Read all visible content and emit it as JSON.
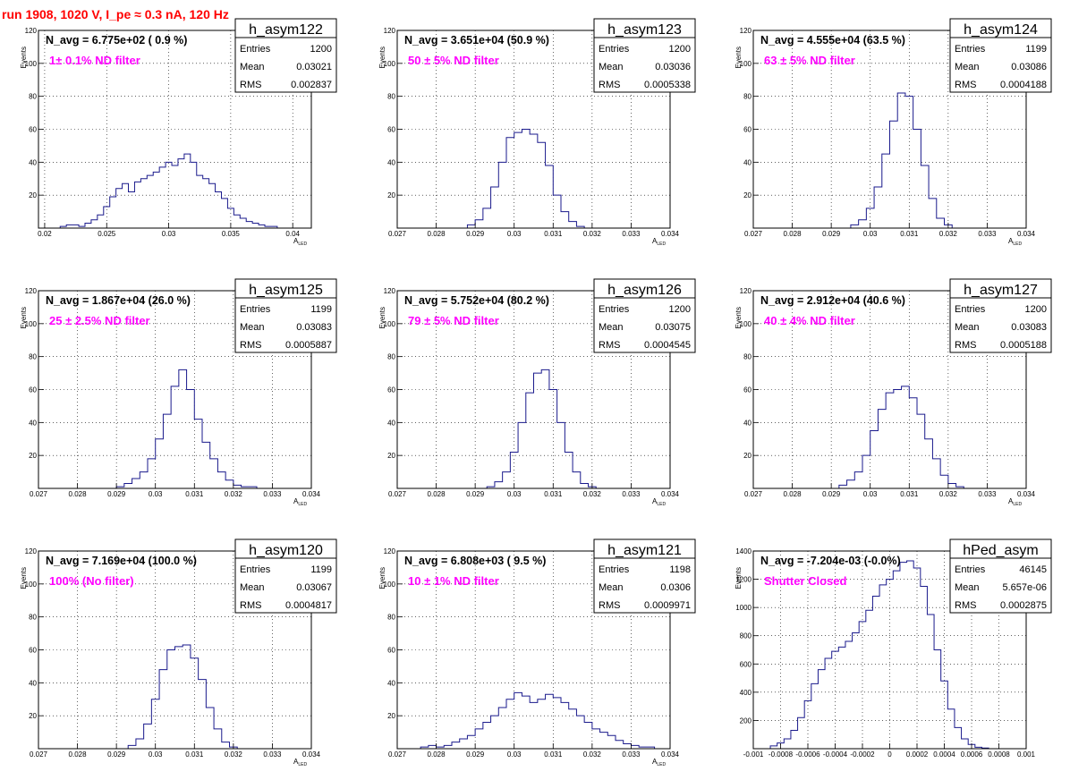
{
  "title": "run 1908,  1020 V, I_pe ≈ 0.3 nA, 120 Hz",
  "chart_data": [
    {
      "type": "histogram",
      "name": "h_asym122",
      "navg": "N_avg = 6.775e+02 ( 0.9 %)",
      "filter": "1± 0.1% ND filter",
      "stats": {
        "Entries": "1200",
        "Mean": "0.03021",
        "RMS": "0.002837"
      },
      "xlabel": "A",
      "xlabel_sub": "LED",
      "ylabel": "Events",
      "xlim": [
        0.0195,
        0.0415
      ],
      "ylim": [
        0,
        120
      ],
      "xticks": [
        "0.02",
        "0.025",
        "0.03",
        "0.035",
        "0.04"
      ],
      "yticks": [
        "20",
        "40",
        "60",
        "80",
        "100",
        "120"
      ],
      "x": [
        0.0215,
        0.022,
        0.0225,
        0.023,
        0.0235,
        0.024,
        0.0245,
        0.025,
        0.0255,
        0.026,
        0.0265,
        0.027,
        0.0275,
        0.028,
        0.0285,
        0.029,
        0.0295,
        0.03,
        0.0305,
        0.031,
        0.0315,
        0.032,
        0.0325,
        0.033,
        0.0335,
        0.034,
        0.0345,
        0.035,
        0.0355,
        0.036,
        0.0365,
        0.037,
        0.0375,
        0.038,
        0.0385
      ],
      "y": [
        1,
        2,
        2,
        1,
        3,
        5,
        8,
        13,
        19,
        24,
        27,
        22,
        28,
        30,
        32,
        34,
        37,
        40,
        38,
        42,
        45,
        40,
        32,
        30,
        27,
        22,
        18,
        12,
        8,
        6,
        4,
        3,
        2,
        1,
        1
      ]
    },
    {
      "type": "histogram",
      "name": "h_asym123",
      "navg": "N_avg = 3.651e+04 (50.9 %)",
      "filter": "50 ± 5% ND filter",
      "stats": {
        "Entries": "1200",
        "Mean": "0.03036",
        "RMS": "0.0005338"
      },
      "xlabel": "A",
      "xlabel_sub": "LED",
      "ylabel": "Events",
      "xlim": [
        0.027,
        0.034
      ],
      "ylim": [
        0,
        120
      ],
      "xticks": [
        "0.027",
        "0.028",
        "0.029",
        "0.03",
        "0.031",
        "0.032",
        "0.033",
        "0.034"
      ],
      "yticks": [
        "20",
        "40",
        "60",
        "80",
        "100",
        "120"
      ],
      "x": [
        0.0289,
        0.0291,
        0.0293,
        0.0295,
        0.0297,
        0.0299,
        0.0301,
        0.0303,
        0.0305,
        0.0307,
        0.0309,
        0.0311,
        0.0313,
        0.0315,
        0.0317
      ],
      "y": [
        2,
        5,
        12,
        25,
        40,
        55,
        58,
        60,
        57,
        52,
        38,
        20,
        10,
        4,
        1
      ]
    },
    {
      "type": "histogram",
      "name": "h_asym124",
      "navg": "N_avg = 4.555e+04 (63.5 %)",
      "filter": "63 ± 5% ND filter",
      "stats": {
        "Entries": "1199",
        "Mean": "0.03086",
        "RMS": "0.0004188"
      },
      "xlabel": "A",
      "xlabel_sub": "LED",
      "ylabel": "Events",
      "xlim": [
        0.027,
        0.034
      ],
      "ylim": [
        0,
        120
      ],
      "xticks": [
        "0.027",
        "0.028",
        "0.029",
        "0.03",
        "0.031",
        "0.032",
        "0.033",
        "0.034"
      ],
      "yticks": [
        "20",
        "40",
        "60",
        "80",
        "100",
        "120"
      ],
      "x": [
        0.0296,
        0.0298,
        0.03,
        0.0302,
        0.0304,
        0.0306,
        0.0308,
        0.031,
        0.0312,
        0.0314,
        0.0316,
        0.0318,
        0.032
      ],
      "y": [
        2,
        5,
        12,
        25,
        45,
        65,
        82,
        80,
        60,
        38,
        18,
        6,
        2
      ]
    },
    {
      "type": "histogram",
      "name": "h_asym125",
      "navg": "N_avg = 1.867e+04 (26.0 %)",
      "filter": "25 ± 2.5% ND filter",
      "stats": {
        "Entries": "1199",
        "Mean": "0.03083",
        "RMS": "0.0005887"
      },
      "xlabel": "A",
      "xlabel_sub": "LED",
      "ylabel": "Events",
      "xlim": [
        0.027,
        0.034
      ],
      "ylim": [
        0,
        120
      ],
      "xticks": [
        "0.027",
        "0.028",
        "0.029",
        "0.03",
        "0.031",
        "0.032",
        "0.033",
        "0.034"
      ],
      "yticks": [
        "20",
        "40",
        "60",
        "80",
        "100",
        "120"
      ],
      "x": [
        0.0291,
        0.0293,
        0.0295,
        0.0297,
        0.0299,
        0.0301,
        0.0303,
        0.0305,
        0.0307,
        0.0309,
        0.0311,
        0.0313,
        0.0315,
        0.0317,
        0.0319,
        0.0321,
        0.0323,
        0.0325
      ],
      "y": [
        1,
        3,
        6,
        10,
        18,
        30,
        45,
        62,
        72,
        60,
        42,
        28,
        18,
        10,
        5,
        2,
        1,
        1
      ]
    },
    {
      "type": "histogram",
      "name": "h_asym126",
      "navg": "N_avg = 5.752e+04 (80.2 %)",
      "filter": "79 ± 5% ND filter",
      "stats": {
        "Entries": "1200",
        "Mean": "0.03075",
        "RMS": "0.0004545"
      },
      "xlabel": "A",
      "xlabel_sub": "LED",
      "ylabel": "Events",
      "xlim": [
        0.027,
        0.034
      ],
      "ylim": [
        0,
        120
      ],
      "xticks": [
        "0.027",
        "0.028",
        "0.029",
        "0.03",
        "0.031",
        "0.032",
        "0.033",
        "0.034"
      ],
      "yticks": [
        "20",
        "40",
        "60",
        "80",
        "100",
        "120"
      ],
      "x": [
        0.0294,
        0.0296,
        0.0298,
        0.03,
        0.0302,
        0.0304,
        0.0306,
        0.0308,
        0.031,
        0.0312,
        0.0314,
        0.0316,
        0.0318,
        0.032
      ],
      "y": [
        1,
        4,
        10,
        22,
        40,
        58,
        70,
        72,
        60,
        40,
        22,
        10,
        3,
        1
      ]
    },
    {
      "type": "histogram",
      "name": "h_asym127",
      "navg": "N_avg = 2.912e+04 (40.6 %)",
      "filter": "40 ± 4% ND filter",
      "stats": {
        "Entries": "1200",
        "Mean": "0.03083",
        "RMS": "0.0005188"
      },
      "xlabel": "A",
      "xlabel_sub": "LED",
      "ylabel": "Events",
      "xlim": [
        0.027,
        0.034
      ],
      "ylim": [
        0,
        120
      ],
      "xticks": [
        "0.027",
        "0.028",
        "0.029",
        "0.03",
        "0.031",
        "0.032",
        "0.033",
        "0.034"
      ],
      "yticks": [
        "20",
        "40",
        "60",
        "80",
        "100",
        "120"
      ],
      "x": [
        0.0293,
        0.0295,
        0.0297,
        0.0299,
        0.0301,
        0.0303,
        0.0305,
        0.0307,
        0.0309,
        0.0311,
        0.0313,
        0.0315,
        0.0317,
        0.0319,
        0.0321,
        0.0323
      ],
      "y": [
        2,
        5,
        10,
        20,
        35,
        48,
        58,
        60,
        62,
        55,
        45,
        30,
        18,
        8,
        3,
        1
      ]
    },
    {
      "type": "histogram",
      "name": "h_asym120",
      "navg": "N_avg = 7.169e+04 (100.0 %)",
      "filter": "100% (No filter)",
      "stats": {
        "Entries": "1199",
        "Mean": "0.03067",
        "RMS": "0.0004817"
      },
      "xlabel": "A",
      "xlabel_sub": "LED",
      "ylabel": "Events",
      "xlim": [
        0.027,
        0.034
      ],
      "ylim": [
        0,
        120
      ],
      "xticks": [
        "0.027",
        "0.028",
        "0.029",
        "0.03",
        "0.031",
        "0.032",
        "0.033",
        "0.034"
      ],
      "yticks": [
        "20",
        "40",
        "60",
        "80",
        "100",
        "120"
      ],
      "x": [
        0.0294,
        0.0296,
        0.0298,
        0.03,
        0.0302,
        0.0304,
        0.0306,
        0.0308,
        0.031,
        0.0312,
        0.0314,
        0.0316,
        0.0318,
        0.032
      ],
      "y": [
        2,
        6,
        15,
        30,
        48,
        60,
        62,
        63,
        55,
        42,
        25,
        12,
        4,
        1
      ]
    },
    {
      "type": "histogram",
      "name": "h_asym121",
      "navg": "N_avg = 6.808e+03 ( 9.5 %)",
      "filter": "10 ± 1% ND filter",
      "stats": {
        "Entries": "1198",
        "Mean": "0.0306",
        "RMS": "0.0009971"
      },
      "xlabel": "A",
      "xlabel_sub": "LED",
      "ylabel": "Events",
      "xlim": [
        0.027,
        0.034
      ],
      "ylim": [
        0,
        120
      ],
      "xticks": [
        "0.027",
        "0.028",
        "0.029",
        "0.03",
        "0.031",
        "0.032",
        "0.033",
        "0.034"
      ],
      "yticks": [
        "20",
        "40",
        "60",
        "80",
        "100",
        "120"
      ],
      "x": [
        0.0277,
        0.0279,
        0.0281,
        0.0283,
        0.0285,
        0.0287,
        0.0289,
        0.0291,
        0.0293,
        0.0295,
        0.0297,
        0.0299,
        0.0301,
        0.0303,
        0.0305,
        0.0307,
        0.0309,
        0.0311,
        0.0313,
        0.0315,
        0.0317,
        0.0319,
        0.0321,
        0.0323,
        0.0325,
        0.0327,
        0.0329,
        0.0331,
        0.0333,
        0.0335
      ],
      "y": [
        1,
        2,
        1,
        2,
        4,
        6,
        8,
        12,
        16,
        20,
        25,
        30,
        34,
        32,
        28,
        30,
        33,
        31,
        28,
        24,
        20,
        16,
        12,
        10,
        8,
        5,
        3,
        2,
        1,
        1
      ]
    },
    {
      "type": "histogram",
      "name": "hPed_asym",
      "navg": "N_avg = -7.204e-03 (-0.0%)",
      "filter": "Shutter Closed",
      "stats": {
        "Entries": "46145",
        "Mean": "5.657e-06",
        "RMS": "0.0002875"
      },
      "xlabel": "",
      "xlabel_sub": "",
      "ylabel": "Events",
      "xlim": [
        -0.001,
        0.001
      ],
      "ylim": [
        0,
        1400
      ],
      "xticks": [
        "-0.001",
        "-0.0008",
        "-0.0006",
        "-0.0004",
        "-0.0002",
        "0",
        "0.0002",
        "0.0004",
        "0.0006",
        "0.0008",
        "0.001"
      ],
      "yticks": [
        "200",
        "400",
        "600",
        "800",
        "1000",
        "1200",
        "1400"
      ],
      "x": [
        -0.00085,
        -0.0008,
        -0.00075,
        -0.0007,
        -0.00065,
        -0.0006,
        -0.00055,
        -0.0005,
        -0.00045,
        -0.0004,
        -0.00035,
        -0.0003,
        -0.00025,
        -0.0002,
        -0.00015,
        -0.0001,
        -5e-05,
        0,
        5e-05,
        0.0001,
        0.00015,
        0.0002,
        0.00025,
        0.0003,
        0.00035,
        0.0004,
        0.00045,
        0.0005,
        0.00055,
        0.0006,
        0.00065,
        0.0007
      ],
      "y": [
        20,
        40,
        70,
        130,
        220,
        340,
        460,
        560,
        640,
        690,
        720,
        760,
        820,
        900,
        980,
        1080,
        1160,
        1200,
        1260,
        1320,
        1330,
        1280,
        1150,
        950,
        700,
        480,
        280,
        150,
        70,
        30,
        10,
        5
      ]
    }
  ]
}
